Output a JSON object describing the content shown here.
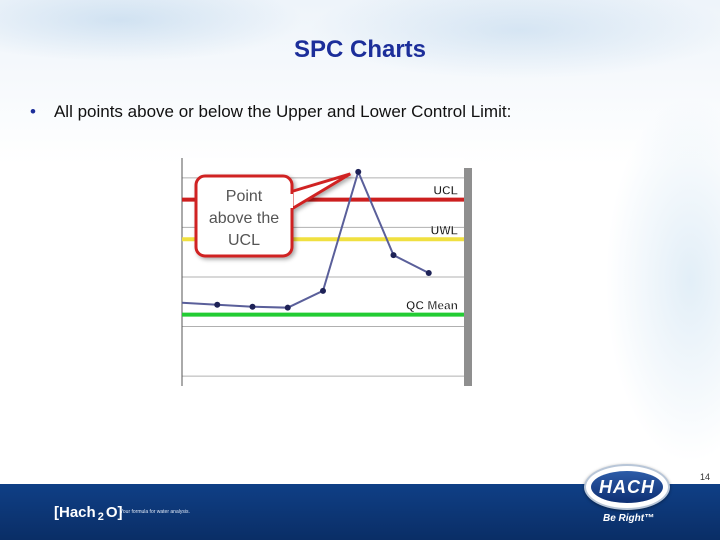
{
  "slide": {
    "title": "SPC Charts",
    "bullet": "All points above or below the Upper and Lower Control Limit:",
    "page_number": "14"
  },
  "footer": {
    "brand_main": "Hach",
    "brand_sub": "2",
    "brand_end": "O",
    "tagline": "Your formula for water analysis.",
    "logo_text": "HACH",
    "logo_mark": "®",
    "slogan": "Be Right™"
  },
  "chart_data": {
    "type": "line",
    "title": "",
    "xlabel": "",
    "ylabel": "",
    "x": [
      1,
      2,
      3,
      4,
      5,
      6,
      7
    ],
    "series": [
      {
        "values": [
          2.2,
          2.0,
          1.9,
          3.6,
          15.6,
          7.2,
          5.4
        ]
      }
    ],
    "ylim": [
      -6,
      17
    ],
    "xlim": [
      0,
      8
    ],
    "grid": true,
    "reference_lines": [
      {
        "label": "UCL",
        "value": 12.8,
        "color": "#cc1f1f"
      },
      {
        "label": "UWL",
        "value": 8.8,
        "color": "#f0e040"
      },
      {
        "label": "QC Mean",
        "value": 1.2,
        "color": "#22cc33"
      }
    ],
    "annotation": {
      "lines": [
        "Point",
        "above the",
        "UCL"
      ]
    },
    "colors": {
      "line": "#5a5f9a",
      "marker": "#1e2257",
      "callout_border": "#d02222"
    }
  }
}
